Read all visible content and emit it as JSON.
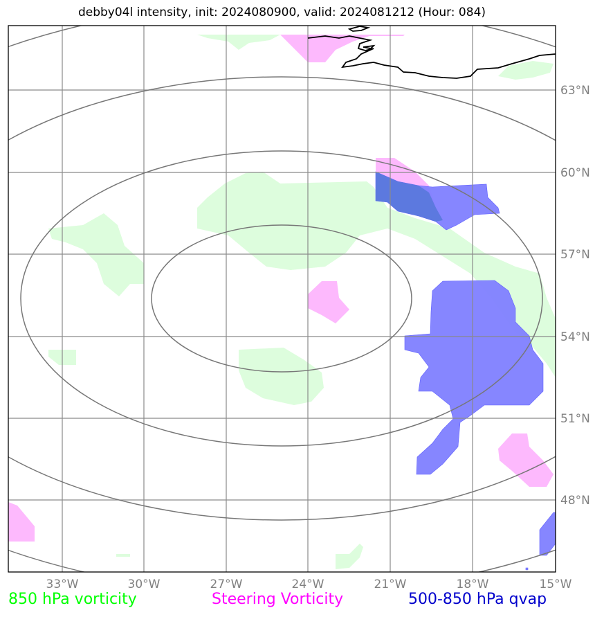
{
  "title": "debby04l intensity, init: 2024080900, valid: 2024081212 (Hour: 084)",
  "axes": {
    "lon_labels": [
      "33°W",
      "30°W",
      "27°W",
      "24°W",
      "21°W",
      "18°W",
      "15°W"
    ],
    "lat_labels": [
      "63°N",
      "60°N",
      "57°N",
      "54°N",
      "51°N",
      "48°N"
    ]
  },
  "legend": {
    "vort850": {
      "label": "850 hPa vorticity",
      "color": "#00ff00"
    },
    "steering": {
      "label": "Steering Vorticity",
      "color": "#ff00ff"
    },
    "qvap": {
      "label": "500-850 hPa qvap",
      "color": "#0000cc"
    }
  },
  "colors": {
    "green_fill": "#ddfddd",
    "magenta_fill": "#fdb9fd",
    "blue_fill": "#7f7fff",
    "grid": "#8a8a8a",
    "range_rings": "#777777",
    "coastline": "#000000"
  },
  "map": {
    "lon_range": [
      "35°W",
      "15°W"
    ],
    "lat_range": [
      "45°N",
      "65°N"
    ],
    "range_rings_count": 4
  }
}
